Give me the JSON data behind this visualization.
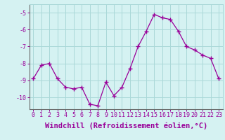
{
  "x": [
    0,
    1,
    2,
    3,
    4,
    5,
    6,
    7,
    8,
    9,
    10,
    11,
    12,
    13,
    14,
    15,
    16,
    17,
    18,
    19,
    20,
    21,
    22,
    23
  ],
  "y": [
    -8.9,
    -8.1,
    -8.0,
    -8.9,
    -9.4,
    -9.5,
    -9.4,
    -10.4,
    -10.5,
    -9.1,
    -9.9,
    -9.4,
    -8.3,
    -7.0,
    -6.1,
    -5.1,
    -5.3,
    -5.4,
    -6.1,
    -7.0,
    -7.2,
    -7.5,
    -7.7,
    -8.9
  ],
  "line_color": "#990099",
  "marker": "+",
  "marker_size": 4,
  "marker_linewidth": 1.0,
  "line_width": 0.9,
  "xlim": [
    -0.5,
    23.5
  ],
  "ylim": [
    -10.7,
    -4.5
  ],
  "yticks": [
    -10,
    -9,
    -8,
    -7,
    -6,
    -5
  ],
  "xtick_labels": [
    "0",
    "1",
    "2",
    "3",
    "4",
    "5",
    "6",
    "7",
    "8",
    "9",
    "10",
    "11",
    "12",
    "13",
    "14",
    "15",
    "16",
    "17",
    "18",
    "19",
    "20",
    "21",
    "22",
    "23"
  ],
  "xlabel": "Windchill (Refroidissement éolien,°C)",
  "background_color": "#d5f2f2",
  "grid_color": "#aad8d8",
  "tick_color": "#990099",
  "label_color": "#990099",
  "tick_fontsize": 6,
  "xlabel_fontsize": 7.5
}
